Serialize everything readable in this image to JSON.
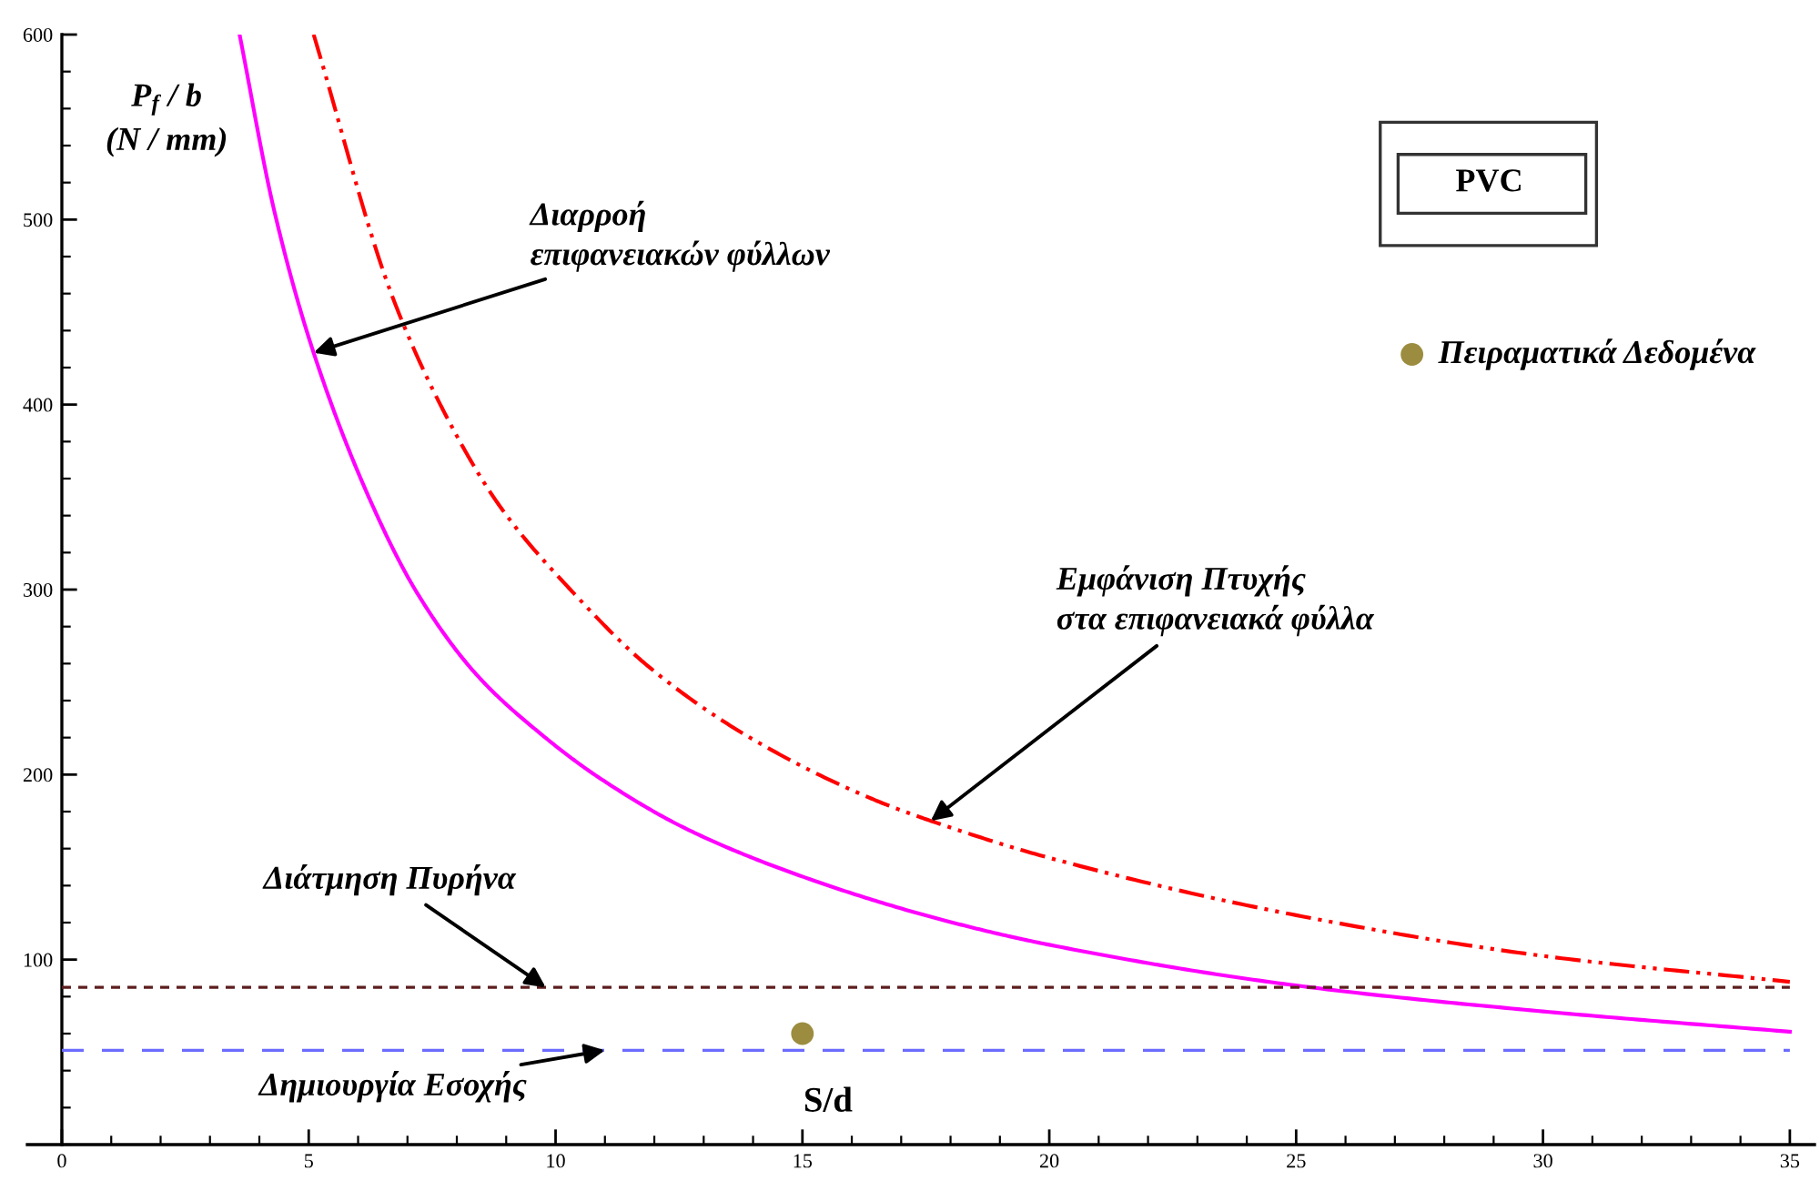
{
  "chart_data": {
    "type": "line",
    "title": "PVC",
    "xlabel": "S/d",
    "ylabel": "P$_{f}$ / b\n(N / mm)",
    "xlim": [
      -0.7,
      35.5
    ],
    "ylim": [
      0,
      600
    ],
    "xticks": [
      0,
      5,
      10,
      15,
      20,
      25,
      30,
      35
    ],
    "yticks": [
      100,
      200,
      300,
      400,
      500,
      600
    ],
    "legend": "top right",
    "series": [
      {
        "color": "#ff00ff",
        "line_style": "solid",
        "x": [
          3.6,
          4.3,
          5.1,
          6.3,
          7.2,
          8.4,
          9.7,
          10.9,
          12.7,
          15.2,
          17.9,
          20,
          25,
          30,
          35
        ],
        "values": [
          600,
          505,
          428,
          345,
          298,
          254,
          222,
          198,
          170,
          143,
          121,
          108,
          86,
          72,
          61
        ]
      },
      {
        "color": "#ff0000",
        "line_style": "dashdotdot",
        "x": [
          5.1,
          6.7,
          7.9,
          8.9,
          10.3,
          11.9,
          14.0,
          16.4,
          17.6,
          20,
          25,
          30,
          35
        ],
        "values": [
          600,
          458,
          388,
          344,
          300,
          258,
          219,
          187,
          175,
          155,
          124,
          102,
          88
        ]
      },
      {
        "color": "#5c1e1e",
        "line_style": "dotted",
        "x": [
          0,
          35
        ],
        "values": [
          85,
          85
        ]
      },
      {
        "color": "#6b6bff",
        "line_style": "dashed",
        "x": [
          0,
          35
        ],
        "values": [
          51,
          51
        ]
      },
      {
        "type": "scatter",
        "name": "Πειραματικά Δεδομένα",
        "color": "#9c8c3f",
        "marker": "circle",
        "x": [
          15
        ],
        "values": [
          60
        ]
      }
    ],
    "annotations": [
      {
        "text": "Διαρροή\nεπιφανειακών φύλλων",
        "x": 5.1,
        "y": 428
      },
      {
        "text": "Εμφάνιση Πτυχής\nστα επιφανειακά φύλλα",
        "x": 17.6,
        "y": 175
      },
      {
        "text": "Διάτμηση Πυρήνα",
        "x": 9.8,
        "y": 85
      },
      {
        "text": "Δημιουργία Εσοχής",
        "x": 11.0,
        "y": 51
      }
    ]
  }
}
